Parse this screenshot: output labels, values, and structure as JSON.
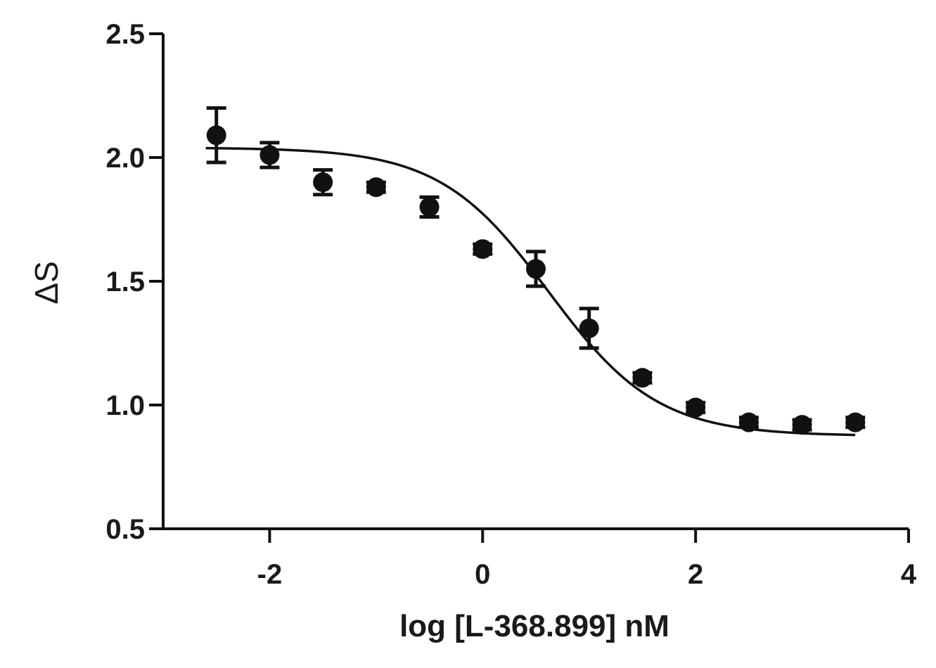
{
  "chart_data": {
    "type": "scatter",
    "xlabel": "log [L-368.899] nM",
    "ylabel": "ΔS",
    "xlim": [
      -3,
      4
    ],
    "ylim": [
      0.5,
      2.5
    ],
    "x_ticks": [
      -2,
      0,
      2,
      4
    ],
    "x_tick_labels": [
      "-2",
      "0",
      "2",
      "4"
    ],
    "y_ticks": [
      0.5,
      1.0,
      1.5,
      2.0,
      2.5
    ],
    "y_tick_labels": [
      "0.5",
      "1.0",
      "1.5",
      "2.0",
      "2.5"
    ],
    "grid": false,
    "points": [
      {
        "x": -2.5,
        "y": 2.09,
        "err": 0.11
      },
      {
        "x": -2.0,
        "y": 2.01,
        "err": 0.05
      },
      {
        "x": -1.5,
        "y": 1.9,
        "err": 0.05
      },
      {
        "x": -1.0,
        "y": 1.88,
        "err": 0.02
      },
      {
        "x": -0.5,
        "y": 1.8,
        "err": 0.04
      },
      {
        "x": 0.0,
        "y": 1.63,
        "err": 0.02
      },
      {
        "x": 0.5,
        "y": 1.55,
        "err": 0.07
      },
      {
        "x": 1.0,
        "y": 1.31,
        "err": 0.08
      },
      {
        "x": 1.5,
        "y": 1.11,
        "err": 0.02
      },
      {
        "x": 2.0,
        "y": 0.99,
        "err": 0.02
      },
      {
        "x": 2.5,
        "y": 0.93,
        "err": 0.02
      },
      {
        "x": 3.0,
        "y": 0.92,
        "err": 0.02
      },
      {
        "x": 3.5,
        "y": 0.93,
        "err": 0.02
      }
    ],
    "fit_curve": {
      "model": "four-parameter logistic",
      "top": 2.04,
      "bottom": 0.875,
      "log_ic50": 0.62,
      "hill_slope": -0.85,
      "x_range": [
        -2.6,
        3.5
      ]
    },
    "colors": {
      "marker": "#111111",
      "line": "#111111",
      "axis": "#111111"
    }
  }
}
